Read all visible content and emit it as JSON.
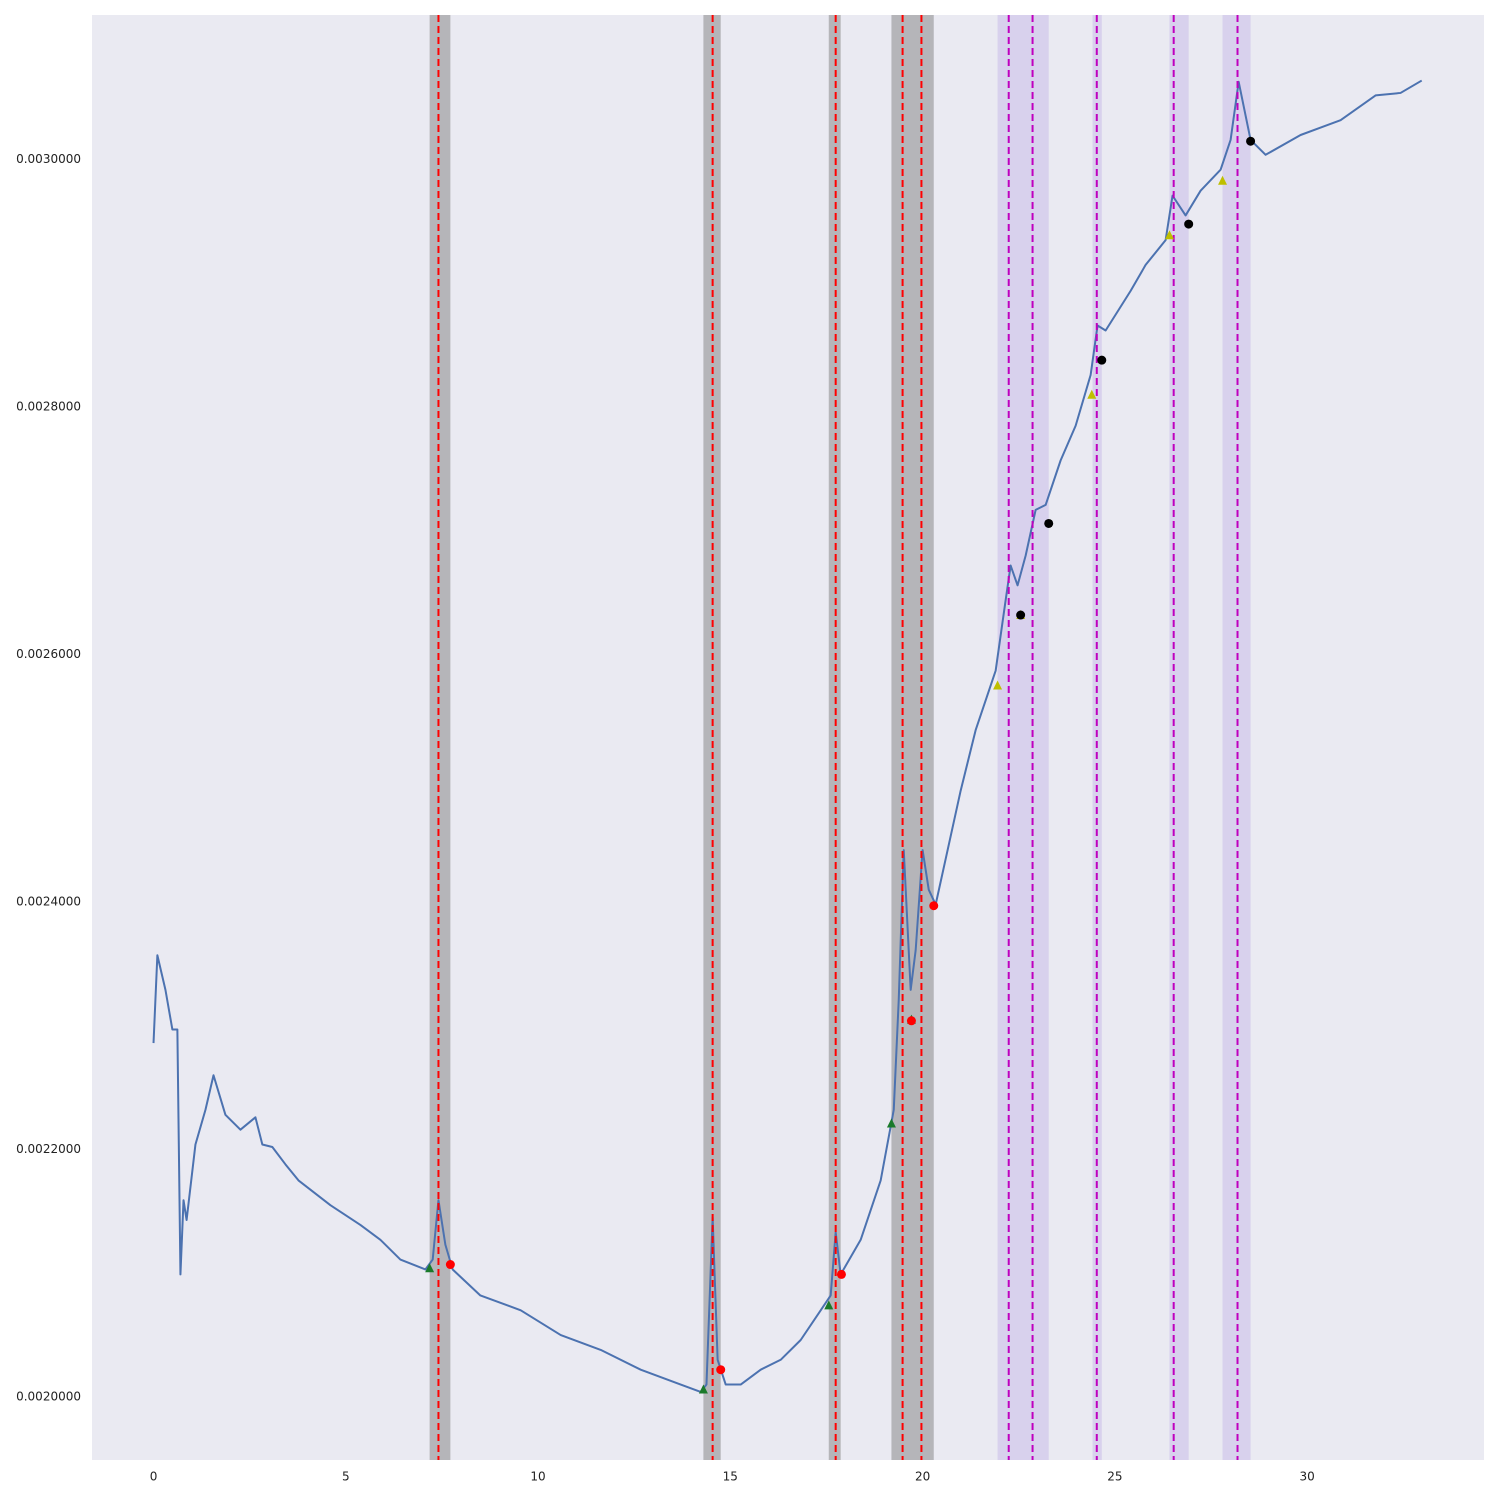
{
  "chart_data": {
    "type": "line",
    "background": "#eaeaf2",
    "grid": false,
    "xlim": [
      -1.6,
      34.6
    ],
    "ylim": [
      0.001949,
      0.003117
    ],
    "xticks": [
      0,
      5,
      10,
      15,
      20,
      25,
      30
    ],
    "yticks": [
      {
        "value": 0.002,
        "label": "0.0020000"
      },
      {
        "value": 0.0022,
        "label": "0.0022000"
      },
      {
        "value": 0.0024,
        "label": "0.0024000"
      },
      {
        "value": 0.0026,
        "label": "0.0026000"
      },
      {
        "value": 0.0028,
        "label": "0.0028000"
      },
      {
        "value": 0.003,
        "label": "0.0030000"
      }
    ],
    "vspans": [
      {
        "x0": 7.18,
        "x1": 7.72,
        "color": "#808080",
        "alpha": 0.5
      },
      {
        "x0": 14.3,
        "x1": 14.75,
        "color": "#808080",
        "alpha": 0.5
      },
      {
        "x0": 17.56,
        "x1": 17.87,
        "color": "#808080",
        "alpha": 0.5
      },
      {
        "x0": 19.19,
        "x1": 20.29,
        "color": "#808080",
        "alpha": 0.5
      },
      {
        "x0": 21.95,
        "x1": 23.28,
        "color": "#9370db",
        "alpha": 0.2
      },
      {
        "x0": 24.42,
        "x1": 24.66,
        "color": "#9370db",
        "alpha": 0.2
      },
      {
        "x0": 26.42,
        "x1": 26.92,
        "color": "#9370db",
        "alpha": 0.2
      },
      {
        "x0": 27.8,
        "x1": 28.53,
        "color": "#9370db",
        "alpha": 0.2
      }
    ],
    "series": [
      {
        "color": "#4c72b0",
        "x": [
          0,
          0.1,
          0.31,
          0.49,
          0.62,
          0.7,
          0.78,
          0.86,
          1.09,
          1.35,
          1.56,
          1.87,
          2.26,
          2.65,
          2.83,
          3.09,
          3.43,
          3.77,
          4.6,
          5.38,
          5.9,
          6.42,
          7.07,
          7.26,
          7.41,
          7.59,
          7.78,
          8.5,
          9.55,
          10.59,
          11.63,
          12.67,
          13.71,
          14.23,
          14.38,
          14.54,
          14.67,
          14.88,
          15.27,
          15.79,
          16.31,
          16.83,
          17.35,
          17.61,
          17.74,
          17.87,
          18.39,
          18.91,
          19.25,
          19.38,
          19.51,
          19.69,
          19.82,
          20.0,
          20.16,
          20.34,
          20.99,
          21.38,
          21.9,
          22.16,
          22.29,
          22.47,
          22.68,
          22.94,
          23.2,
          23.59,
          23.98,
          24.37,
          24.55,
          24.76,
          25.41,
          25.8,
          26.32,
          26.5,
          26.84,
          27.23,
          27.75,
          28.01,
          28.22,
          28.53,
          28.92,
          29.83,
          30.87,
          31.78,
          32.43,
          32.98
        ],
        "values": [
          0.002286,
          0.002357,
          0.002329,
          0.002297,
          0.002297,
          0.002099,
          0.002159,
          0.002143,
          0.002204,
          0.002232,
          0.00226,
          0.002228,
          0.002216,
          0.002226,
          0.002204,
          0.002202,
          0.002188,
          0.002175,
          0.002155,
          0.002139,
          0.002127,
          0.002111,
          0.002103,
          0.002111,
          0.002159,
          0.002123,
          0.002103,
          0.002082,
          0.00207,
          0.00205,
          0.002038,
          0.002022,
          0.00201,
          0.002004,
          0.00201,
          0.002145,
          0.00203,
          0.00201,
          0.00201,
          0.002022,
          0.00203,
          0.002046,
          0.00207,
          0.002082,
          0.002133,
          0.002099,
          0.002127,
          0.002175,
          0.002232,
          0.002321,
          0.002442,
          0.002329,
          0.002361,
          0.002442,
          0.00241,
          0.002398,
          0.00249,
          0.002539,
          0.002587,
          0.002644,
          0.002672,
          0.002656,
          0.00268,
          0.002717,
          0.002721,
          0.002757,
          0.002785,
          0.002826,
          0.002866,
          0.002862,
          0.002894,
          0.002915,
          0.002935,
          0.002971,
          0.002955,
          0.002975,
          0.002992,
          0.003016,
          0.003063,
          0.003016,
          0.003004,
          0.00302,
          0.003032,
          0.003052,
          0.003054,
          0.003064
        ]
      }
    ],
    "vlines": [
      {
        "x": 7.41,
        "color": "#ff0000"
      },
      {
        "x": 14.54,
        "color": "#ff0000"
      },
      {
        "x": 17.74,
        "color": "#ff0000"
      },
      {
        "x": 19.48,
        "color": "#ff0000"
      },
      {
        "x": 19.97,
        "color": "#ff0000"
      },
      {
        "x": 22.24,
        "color": "#bf00bf"
      },
      {
        "x": 22.86,
        "color": "#bf00bf"
      },
      {
        "x": 24.53,
        "color": "#bf00bf"
      },
      {
        "x": 26.53,
        "color": "#bf00bf"
      },
      {
        "x": 28.19,
        "color": "#bf00bf"
      }
    ],
    "markers": [
      {
        "shape": "triangle",
        "color": "#1a7a2a",
        "x": [
          7.18,
          14.3,
          17.56,
          19.19,
          19.71
        ],
        "values": [
          0.002104,
          0.002006,
          0.002074,
          0.002221,
          0.002305
        ]
      },
      {
        "shape": "circle",
        "color": "#ff0000",
        "x": [
          7.72,
          14.75,
          17.89,
          20.29,
          19.71
        ],
        "values": [
          0.002107,
          0.002022,
          0.002099,
          0.002397,
          0.002304
        ]
      },
      {
        "shape": "triangle",
        "color": "#bfbf00",
        "x": [
          21.95,
          22.55,
          24.4,
          26.42,
          27.8
        ],
        "values": [
          0.002575,
          0.002632,
          0.00281,
          0.002939,
          0.002983
        ]
      },
      {
        "shape": "circle",
        "color": "#000000",
        "x": [
          22.55,
          23.28,
          24.66,
          26.92,
          28.53
        ],
        "values": [
          0.002632,
          0.002706,
          0.002838,
          0.002948,
          0.003015
        ]
      }
    ]
  }
}
